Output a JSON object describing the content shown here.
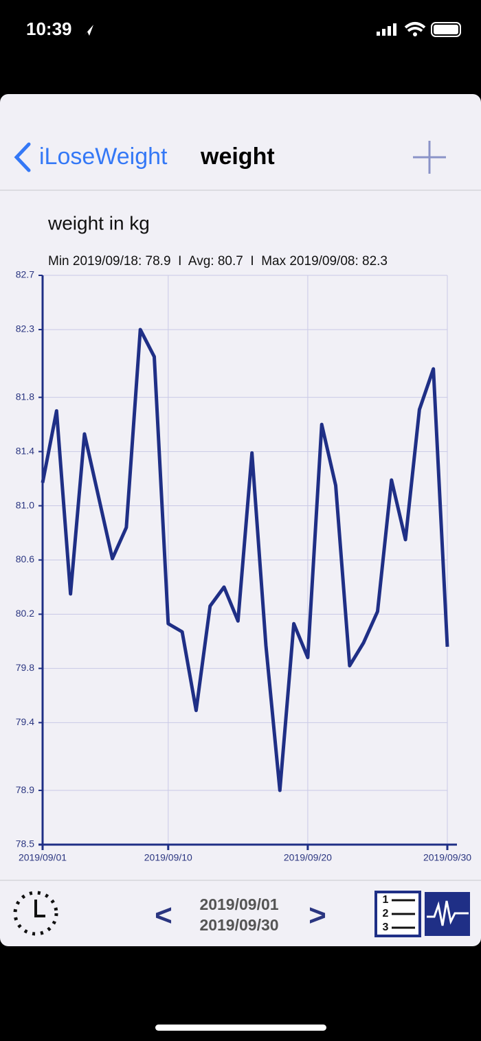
{
  "status_bar": {
    "time": "10:39"
  },
  "nav": {
    "back": "iLoseWeight",
    "title": "weight"
  },
  "chart_data": {
    "type": "line",
    "title": "weight in kg",
    "subtitle": "Min 2019/09/18: 78.9  I  Avg: 80.7  I  Max 2019/09/08: 82.3",
    "x": [
      "2019/09/01",
      "2019/09/02",
      "2019/09/03",
      "2019/09/04",
      "2019/09/05",
      "2019/09/06",
      "2019/09/07",
      "2019/09/08",
      "2019/09/09",
      "2019/09/10",
      "2019/09/11",
      "2019/09/12",
      "2019/09/13",
      "2019/09/14",
      "2019/09/15",
      "2019/09/16",
      "2019/09/17",
      "2019/09/18",
      "2019/09/19",
      "2019/09/20",
      "2019/09/21",
      "2019/09/22",
      "2019/09/23",
      "2019/09/24",
      "2019/09/25",
      "2019/09/26",
      "2019/09/27",
      "2019/09/28",
      "2019/09/29",
      "2019/09/30"
    ],
    "values": [
      81.17,
      81.7,
      80.35,
      81.53,
      81.07,
      80.61,
      80.84,
      82.3,
      82.1,
      80.13,
      80.07,
      79.49,
      80.26,
      80.4,
      80.15,
      81.39,
      79.97,
      78.9,
      80.13,
      79.88,
      81.6,
      81.15,
      79.82,
      79.99,
      80.22,
      81.19,
      80.75,
      81.71,
      82.01,
      79.96
    ],
    "color": "#1f2f86",
    "xlim": [
      "2019/09/01",
      "2019/09/30"
    ],
    "xticks": [
      "2019/09/01",
      "2019/09/10",
      "2019/09/20",
      "2019/09/30"
    ],
    "ylim": [
      78.5,
      82.7
    ],
    "yticks": [
      78.5,
      78.9,
      79.4,
      79.8,
      80.2,
      80.6,
      {
        "value": 81,
        "label": "81.0"
      },
      81.4,
      81.8,
      82.3,
      82.7
    ],
    "grid": true
  },
  "toolbar": {
    "prev": "<",
    "range_start": "2019/09/01",
    "range_end": "2019/09/30",
    "next": ">",
    "list_icon": [
      "1",
      "2",
      "3"
    ]
  }
}
